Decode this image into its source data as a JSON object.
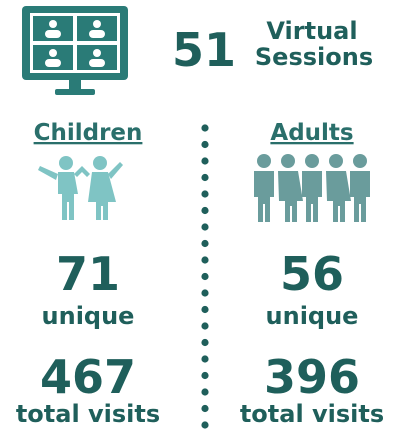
{
  "header": {
    "count": "51",
    "label": [
      "Virtual",
      "Sessions"
    ]
  },
  "groups": [
    {
      "name": "Children",
      "unique": "71",
      "unique_label": "unique",
      "total": "467",
      "total_label": "total visits"
    },
    {
      "name": "Adults",
      "unique": "56",
      "unique_label": "unique",
      "total": "396",
      "total_label": "total visits"
    }
  ]
}
